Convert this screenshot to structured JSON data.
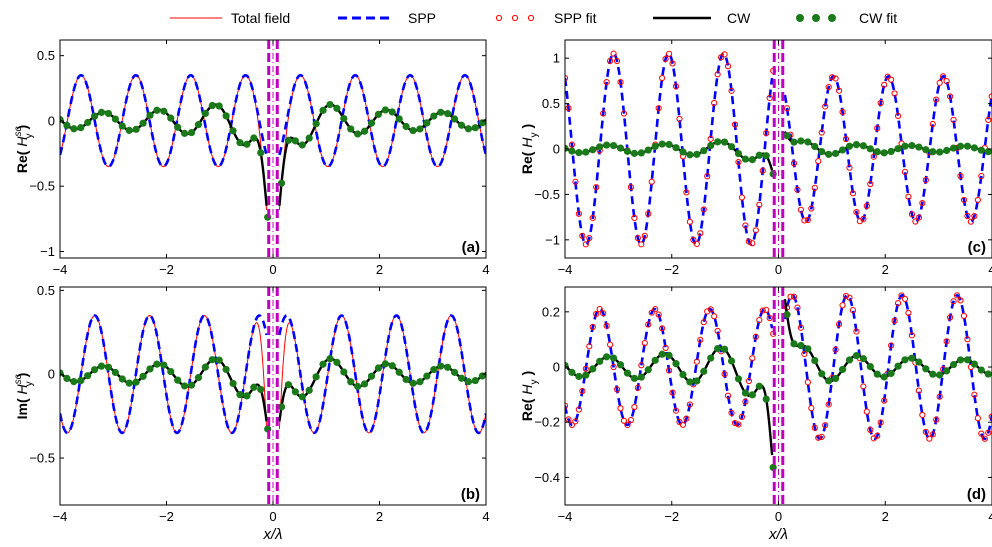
{
  "legend": {
    "total": "Total field",
    "spp": "SPP",
    "spp_fit": "SPP fit",
    "cw": "CW",
    "cw_fit": "CW fit"
  },
  "colors": {
    "total": "#ff0000",
    "spp": "#0000ff",
    "spp_fit": "#ff0000",
    "cw": "#000000",
    "cw_fit": "#1a7a1a",
    "marker_line": "#bf00bf"
  },
  "chart_data": [
    {
      "id": "a",
      "type": "line",
      "panel_label": "(a)",
      "ylabel_main": "Re(",
      "ylabel_var": "H",
      "ylabel_sup": "sc",
      "ylabel_sub": "y",
      "ylabel_close": ")",
      "xlabel": "",
      "xlim": [
        -4,
        4
      ],
      "ylim": [
        -1.05,
        0.62
      ],
      "xticks": [
        -4,
        -2,
        0,
        2,
        4
      ],
      "xtick_labels": [
        "−4",
        "−2",
        "0",
        "2",
        "4"
      ],
      "yticks": [
        -1,
        -0.5,
        0,
        0.5
      ],
      "ytick_labels": [
        "−1",
        "−0.5",
        "0",
        "0.5"
      ],
      "series": [
        {
          "name": "Total field",
          "style": "total",
          "model": "wave",
          "amp": 0.35,
          "phase": "cos",
          "sign": -1,
          "dip": -1.0,
          "mirror": "even"
        },
        {
          "name": "SPP",
          "style": "spp",
          "model": "wave",
          "amp": 0.35,
          "phase": "cos",
          "sign": -1,
          "mirror": "even"
        },
        {
          "name": "CW",
          "style": "cw",
          "model": "cw",
          "amp": 0.3,
          "dip": -1.0,
          "mirror": "even"
        },
        {
          "name": "CW fit",
          "style": "cw_fit",
          "model": "cwfit"
        }
      ]
    },
    {
      "id": "b",
      "type": "line",
      "panel_label": "(b)",
      "ylabel_main": "Im(",
      "ylabel_var": "H",
      "ylabel_sup": "sc",
      "ylabel_sub": "y",
      "ylabel_close": ")",
      "xlabel": "x/λ",
      "xlim": [
        -4,
        4
      ],
      "ylim": [
        -0.78,
        0.52
      ],
      "xticks": [
        -4,
        -2,
        0,
        2,
        4
      ],
      "xtick_labels": [
        "−4",
        "−2",
        "0",
        "2",
        "4"
      ],
      "yticks": [
        -0.5,
        0,
        0.5
      ],
      "ytick_labels": [
        "−0.5",
        "0",
        "0.5"
      ],
      "series": [
        {
          "name": "Total field",
          "style": "total",
          "model": "wave",
          "amp": 0.35,
          "phase": "sin",
          "sign": 1,
          "dip": -0.75,
          "mirror": "even"
        },
        {
          "name": "SPP",
          "style": "spp",
          "model": "wave",
          "amp": 0.35,
          "phase": "sin",
          "sign": 1,
          "mirror": "even"
        },
        {
          "name": "CW",
          "style": "cw",
          "model": "cw",
          "amp": 0.22,
          "dip": -0.47,
          "mirror": "even"
        },
        {
          "name": "CW fit",
          "style": "cw_fit",
          "model": "cwfit"
        }
      ]
    },
    {
      "id": "c",
      "type": "line",
      "panel_label": "(c)",
      "ylabel_main": "Re(",
      "ylabel_var": "H",
      "ylabel_sup": "",
      "ylabel_sub": "y",
      "ylabel_close": ")",
      "xlabel": "",
      "xlim": [
        -4,
        4
      ],
      "ylim": [
        -1.2,
        1.2
      ],
      "xticks": [
        -4,
        -2,
        0,
        2,
        4
      ],
      "xtick_labels": [
        "−4",
        "−2",
        "0",
        "2",
        "4"
      ],
      "yticks": [
        -1,
        -0.5,
        0,
        0.5,
        1
      ],
      "ytick_labels": [
        "−1",
        "−0.5",
        "0",
        "0.5",
        "1"
      ],
      "series": [
        {
          "name": "SPP",
          "style": "spp",
          "model": "wave",
          "amp": 1.05,
          "phase": "cos",
          "sign": 1,
          "right_amp": 0.8,
          "mirror": "odd"
        },
        {
          "name": "SPP fit",
          "style": "spp_fit",
          "model": "sppfit"
        },
        {
          "name": "CW",
          "style": "cw",
          "model": "cw",
          "amp": 0.2,
          "dip": -0.4,
          "mirror": "odd"
        },
        {
          "name": "CW fit",
          "style": "cw_fit",
          "model": "cwfit"
        }
      ]
    },
    {
      "id": "d",
      "type": "line",
      "panel_label": "(d)",
      "ylabel_main": "Re(",
      "ylabel_var": "H",
      "ylabel_sup": "",
      "ylabel_sub": "y",
      "ylabel_close": ")",
      "xlabel": "x/λ",
      "xlim": [
        -4,
        4
      ],
      "ylim": [
        -0.5,
        0.29
      ],
      "xticks": [
        -4,
        -2,
        0,
        2,
        4
      ],
      "xtick_labels": [
        "−4",
        "−2",
        "0",
        "2",
        "4"
      ],
      "yticks": [
        -0.4,
        -0.2,
        0,
        0.2
      ],
      "ytick_labels": [
        "−0.4",
        "−0.2",
        "0",
        "0.2"
      ],
      "series": [
        {
          "name": "SPP",
          "style": "spp",
          "model": "wave",
          "amp": 0.21,
          "phase": "sin",
          "sign": 1,
          "right_amp": 0.26,
          "mirror": "odd"
        },
        {
          "name": "SPP fit",
          "style": "spp_fit",
          "model": "sppfit"
        },
        {
          "name": "CW",
          "style": "cw",
          "model": "cw",
          "amp": 0.17,
          "dip": -0.5,
          "mirror": "odd"
        },
        {
          "name": "CW fit",
          "style": "cw_fit",
          "model": "cwfit"
        }
      ]
    }
  ]
}
